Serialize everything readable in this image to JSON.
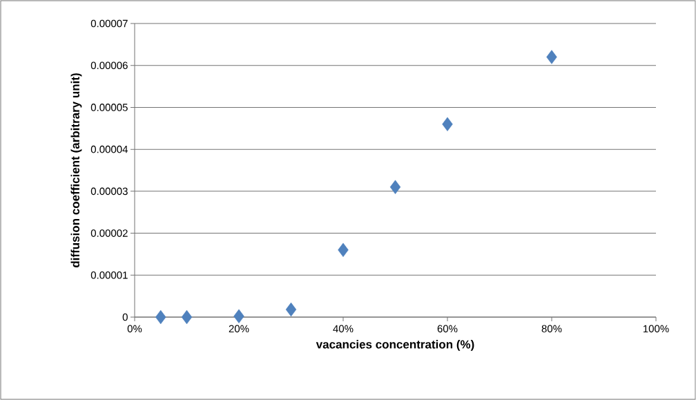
{
  "chart_data": {
    "type": "scatter",
    "xlabel": "vacancies concentration (%)",
    "ylabel": "diffusion coefficient (arbitrary unit)",
    "x": [
      5,
      10,
      20,
      30,
      40,
      50,
      60,
      80
    ],
    "series": [
      {
        "color": "#4f81bd",
        "values": [
          0,
          0,
          2e-07,
          1.8e-06,
          1.6e-05,
          3.1e-05,
          4.6e-05,
          6.2e-05
        ]
      }
    ],
    "xlim": [
      0,
      100
    ],
    "xticks": [
      {
        "value": 0,
        "label": "0%"
      },
      {
        "value": 20,
        "label": "20%"
      },
      {
        "value": 40,
        "label": "40%"
      },
      {
        "value": 60,
        "label": "60%"
      },
      {
        "value": 80,
        "label": "80%"
      },
      {
        "value": 100,
        "label": "100%"
      }
    ],
    "ylim": [
      0,
      7e-05
    ],
    "yticks": [
      {
        "value": 0,
        "label": "0"
      },
      {
        "value": 1e-05,
        "label": "0.00001"
      },
      {
        "value": 2e-05,
        "label": "0.00002"
      },
      {
        "value": 3e-05,
        "label": "0.00003"
      },
      {
        "value": 4e-05,
        "label": "0.00004"
      },
      {
        "value": 5e-05,
        "label": "0.00005"
      },
      {
        "value": 6e-05,
        "label": "0.00006"
      },
      {
        "value": 7e-05,
        "label": "0.00007"
      }
    ],
    "grid": "y",
    "marker": "diamond"
  }
}
